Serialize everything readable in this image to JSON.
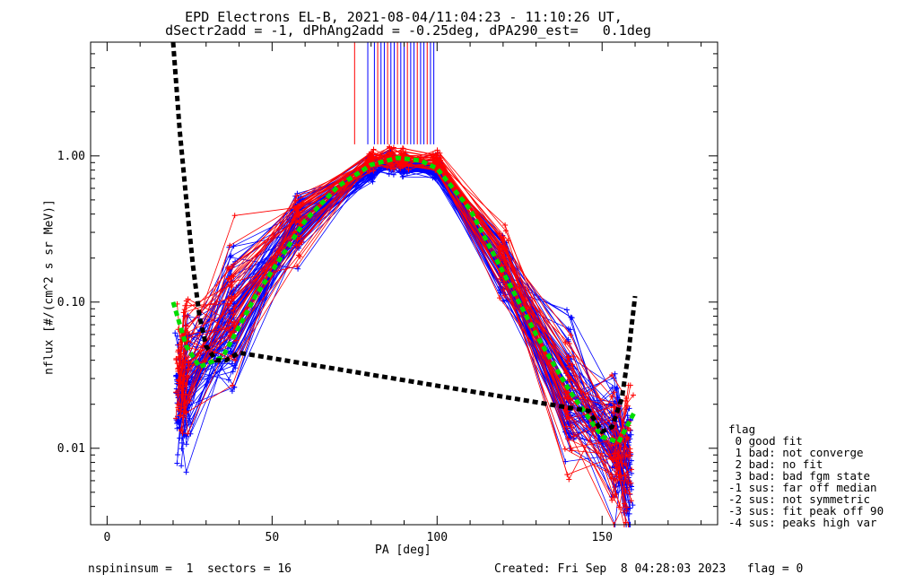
{
  "chart_data": {
    "type": "scatter",
    "title": "EPD Electrons EL-B, 2021-08-04/11:04:23 - 11:10:26 UT,",
    "subtitle": "dSectr2add = -1, dPhAng2add = -0.25deg, dPA290_est=   0.1deg",
    "xlabel": "PA [deg]",
    "ylabel": "nflux [#/(cm^2 s sr MeV)]",
    "xlim": [
      -5,
      185
    ],
    "ylim": [
      0.003,
      6.0
    ],
    "yscale": "log",
    "x_ticks": [
      0,
      50,
      100,
      150
    ],
    "y_ticks": [
      {
        "value": 0.01,
        "label": "0.01"
      },
      {
        "value": 0.1,
        "label": "0.10"
      },
      {
        "value": 1.0,
        "label": "1.00"
      }
    ],
    "grid": false,
    "legend_position": "bottom-right outside",
    "series": [
      {
        "color": "#0000ff",
        "style": "lines+plus markers",
        "sectors_pa": [
          22,
          24,
          38,
          58,
          80,
          86,
          90,
          100,
          120,
          140,
          154,
          158
        ],
        "median_values": [
          0.02,
          0.028,
          0.07,
          0.33,
          0.83,
          0.9,
          0.88,
          0.8,
          0.17,
          0.025,
          0.012,
          0.007
        ]
      },
      {
        "color": "#ff0000",
        "style": "lines+plus markers",
        "sectors_pa": [
          22,
          24,
          38,
          58,
          80,
          86,
          90,
          100,
          120,
          140,
          154,
          158
        ],
        "median_values": [
          0.03,
          0.035,
          0.09,
          0.35,
          0.93,
          0.97,
          0.95,
          0.92,
          0.2,
          0.02,
          0.01,
          0.008
        ]
      },
      {
        "color": "#00dd00",
        "style": "dashed fit",
        "x": [
          20,
          24,
          28,
          35,
          45,
          60,
          70,
          80,
          88,
          95,
          100,
          110,
          120,
          130,
          140,
          150,
          155,
          160
        ],
        "y": [
          0.1,
          0.05,
          0.036,
          0.042,
          0.11,
          0.36,
          0.62,
          0.87,
          0.97,
          0.93,
          0.82,
          0.43,
          0.16,
          0.06,
          0.025,
          0.012,
          0.011,
          0.018
        ]
      },
      {
        "color": "#000000",
        "style": "dashed fit",
        "x": [
          20,
          22,
          24,
          26,
          28,
          30,
          33,
          36,
          40,
          146,
          150,
          153,
          156,
          158,
          160
        ],
        "y": [
          6.0,
          1.5,
          0.5,
          0.18,
          0.08,
          0.05,
          0.04,
          0.04,
          0.045,
          0.018,
          0.013,
          0.014,
          0.022,
          0.045,
          0.11
        ]
      }
    ],
    "peak_markers_pa": [
      75,
      79,
      81,
      82,
      83,
      84,
      85,
      86,
      87,
      88,
      89,
      90,
      91,
      92,
      93,
      94,
      95,
      96,
      97,
      98,
      99
    ]
  },
  "legend": {
    "title": "flag",
    "items": [
      " 0 good fit",
      " 1 bad: not converge",
      " 2 bad: no fit",
      " 3 bad: bad fgm state",
      "-1 sus: far off median",
      "-2 sus: not symmetric",
      "-3 sus: fit peak off 90",
      "-4 sus: peaks high var"
    ]
  },
  "footer": {
    "left": "nspininsum =  1  sectors = 16",
    "right": "Created: Fri Sep  8 04:28:03 2023   flag = 0"
  },
  "colors": {
    "blue": "#0000ff",
    "red": "#ff0000",
    "green": "#00dd00",
    "black": "#000000"
  }
}
